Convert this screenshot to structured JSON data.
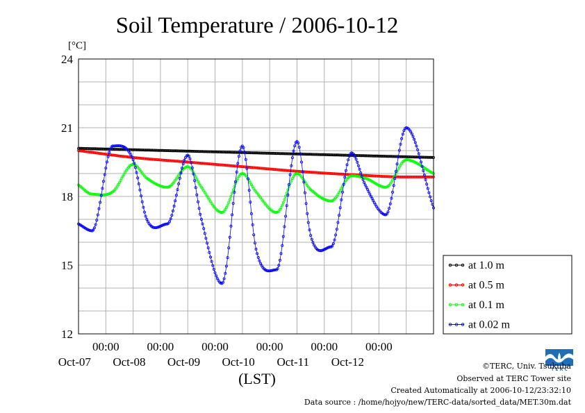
{
  "chart_data": {
    "type": "line",
    "title": "Soil Temperature / 2006-10-12",
    "ylabel": "[°C]",
    "xlabel": "(LST)",
    "ylim": [
      12,
      24
    ],
    "yticks": [
      "12",
      "15",
      "18",
      "21",
      "24"
    ],
    "xlim": [
      "2006-10-06 12:00",
      "2006-10-12 24:00"
    ],
    "xticks": [
      {
        "time": "00:00",
        "date": "Oct-07"
      },
      {
        "time": "00:00",
        "date": "Oct-08"
      },
      {
        "time": "00:00",
        "date": "Oct-09"
      },
      {
        "time": "00:00",
        "date": "Oct-10"
      },
      {
        "time": "00:00",
        "date": "Oct-11"
      },
      {
        "time": "00:00",
        "date": "Oct-12"
      }
    ],
    "grid": true,
    "legend_position": "right",
    "series": [
      {
        "name": "at 1.0 m",
        "color": "#000000",
        "x": [
          "2006-10-06 12:00",
          "2006-10-12 24:00"
        ],
        "y": [
          20.1,
          19.7
        ]
      },
      {
        "name": "at 0.5 m",
        "color": "#ff0000",
        "x": [
          "2006-10-06 12:00",
          "2006-10-07 12:00",
          "2006-10-08 12:00",
          "2006-10-09 12:00",
          "2006-10-10 12:00",
          "2006-10-11 12:00",
          "2006-10-12 12:00",
          "2006-10-12 24:00"
        ],
        "y": [
          20.0,
          19.7,
          19.5,
          19.3,
          19.1,
          18.95,
          18.85,
          18.85
        ]
      },
      {
        "name": "at 0.1 m",
        "color": "#00ff00",
        "x": [
          "2006-10-06 12:00",
          "2006-10-06 18:00",
          "2006-10-07 03:00",
          "2006-10-07 12:00",
          "2006-10-07 18:00",
          "2006-10-08 03:00",
          "2006-10-08 12:00",
          "2006-10-08 18:00",
          "2006-10-09 03:00",
          "2006-10-09 12:00",
          "2006-10-09 18:00",
          "2006-10-10 03:00",
          "2006-10-10 12:00",
          "2006-10-10 18:00",
          "2006-10-11 03:00",
          "2006-10-11 12:00",
          "2006-10-11 18:00",
          "2006-10-12 03:00",
          "2006-10-12 12:00",
          "2006-10-12 24:00"
        ],
        "y": [
          18.5,
          18.1,
          18.2,
          19.4,
          18.8,
          18.4,
          19.3,
          18.4,
          17.3,
          19.0,
          18.2,
          17.3,
          19.0,
          18.3,
          17.8,
          18.9,
          18.8,
          18.4,
          19.6,
          19.0
        ]
      },
      {
        "name": "at 0.02 m",
        "color": "#0000ff",
        "x": [
          "2006-10-06 12:00",
          "2006-10-06 18:00",
          "2006-10-07 03:00",
          "2006-10-07 12:00",
          "2006-10-07 18:00",
          "2006-10-08 03:00",
          "2006-10-08 12:00",
          "2006-10-08 18:00",
          "2006-10-09 03:00",
          "2006-10-09 12:00",
          "2006-10-09 18:00",
          "2006-10-10 03:00",
          "2006-10-10 12:00",
          "2006-10-10 18:00",
          "2006-10-11 03:00",
          "2006-10-11 12:00",
          "2006-10-11 18:00",
          "2006-10-12 03:00",
          "2006-10-12 12:00",
          "2006-10-12 24:00"
        ],
        "y": [
          16.8,
          16.5,
          20.2,
          19.6,
          17.0,
          16.8,
          19.8,
          17.0,
          14.2,
          20.2,
          15.7,
          14.8,
          20.4,
          16.3,
          15.8,
          19.9,
          18.5,
          17.2,
          21.0,
          17.5
        ]
      }
    ]
  },
  "credits": {
    "copyright": "©TERC, Univ. Tsukuba",
    "observed": "Observed at TERC Tower site",
    "created": "Created Automatically at 2006-10-12/23:32:10",
    "source": "Data source : /home/hojyo/new/TERC-data/sorted_data/MET.30m.dat"
  },
  "logo": {
    "text": "T E R C",
    "color": "#1f6fb8"
  }
}
